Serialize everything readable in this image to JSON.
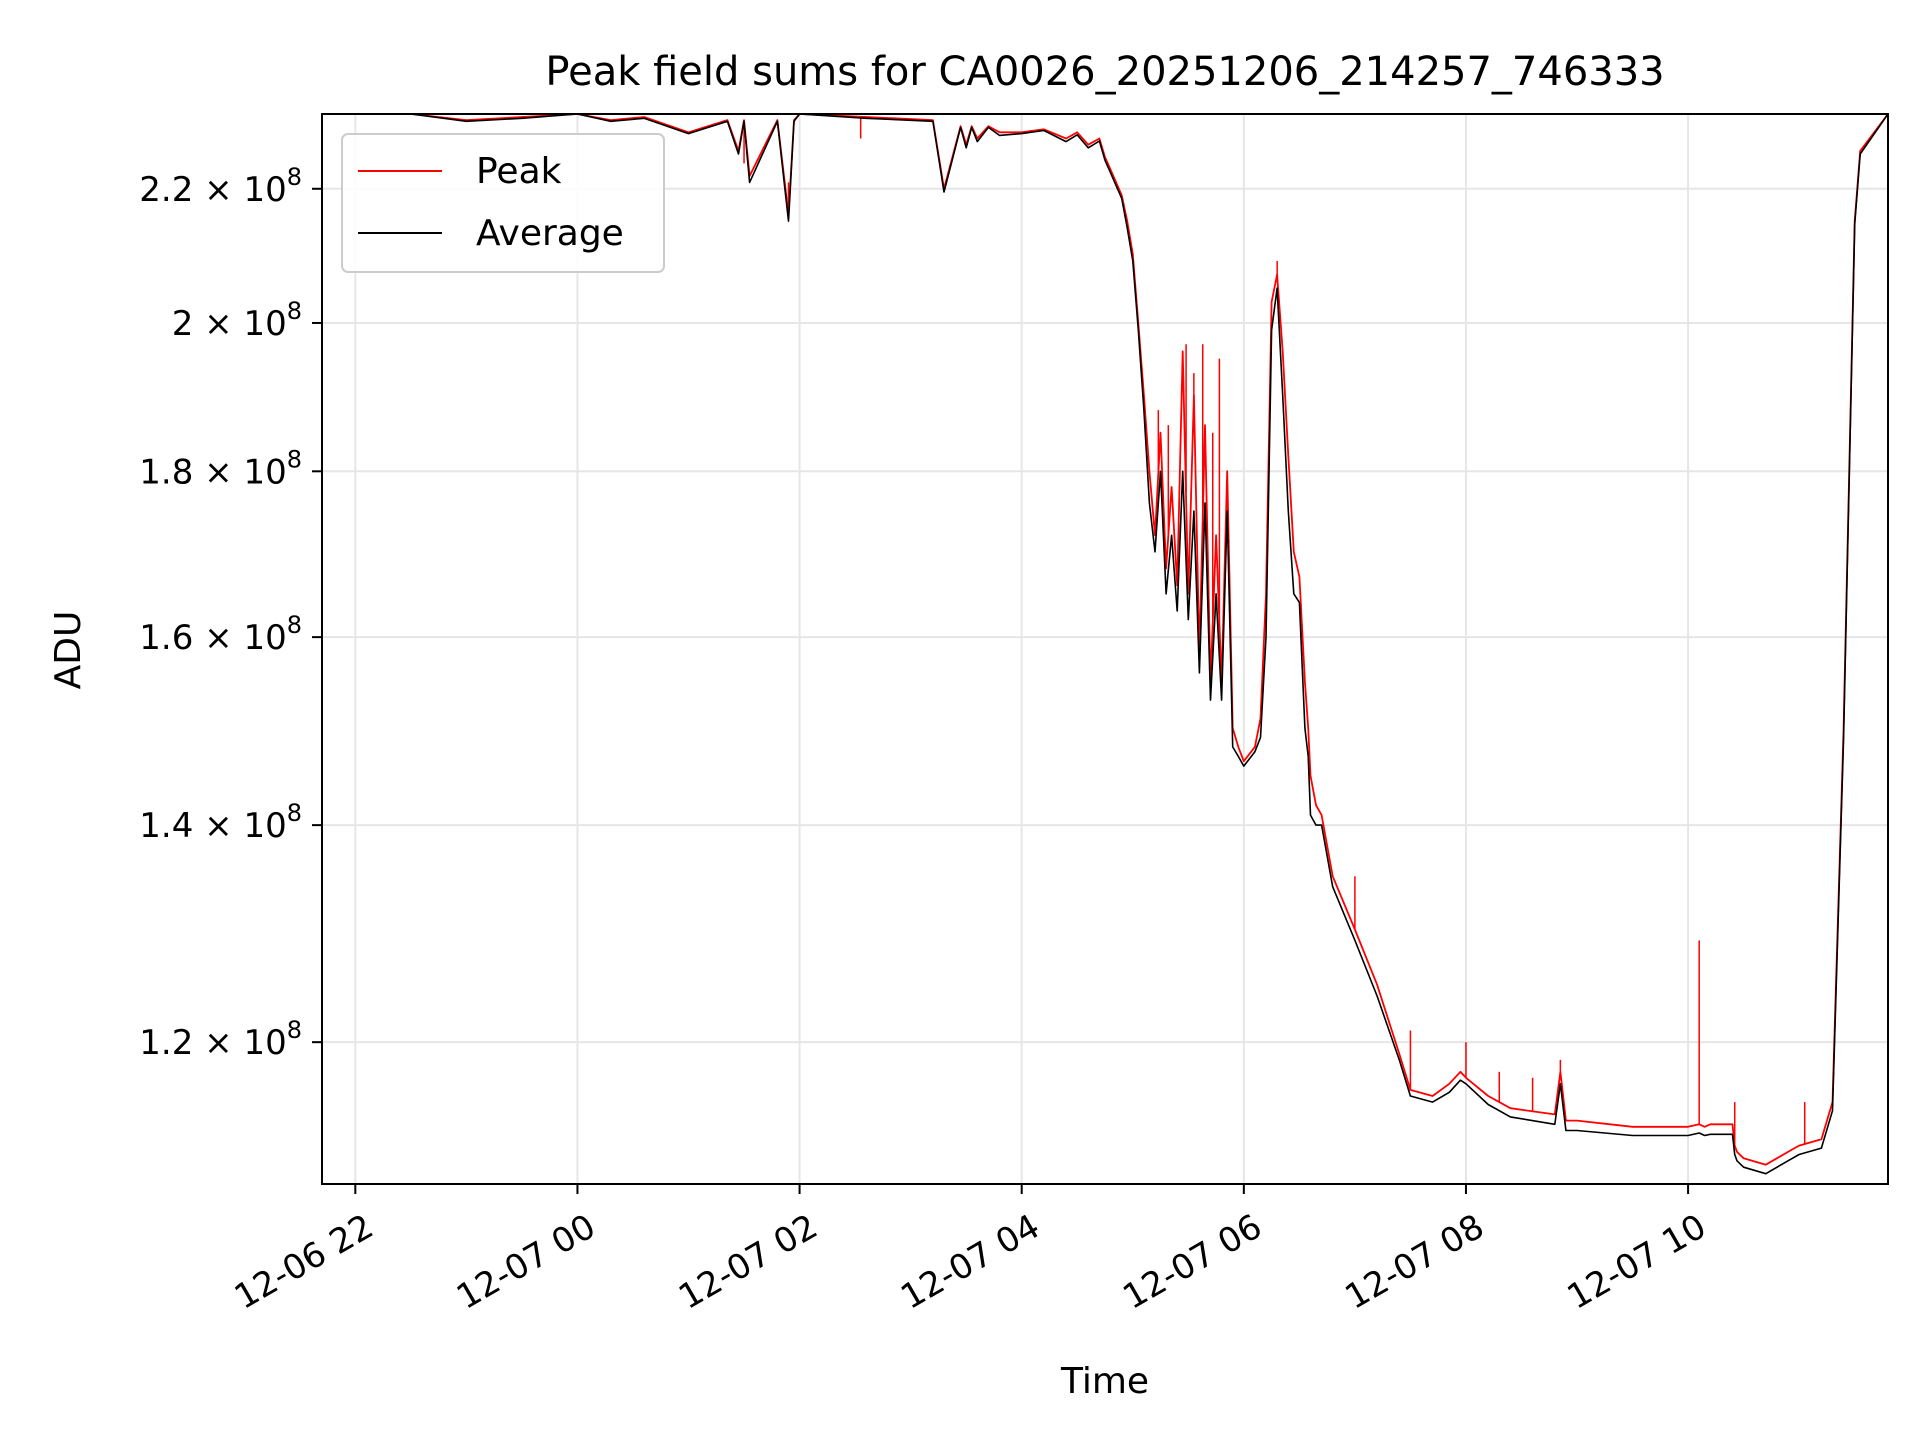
{
  "chart_data": {
    "type": "line",
    "title": "Peak field sums for CA0026_20251206_214257_746333",
    "xlabel": "Time",
    "ylabel": "ADU",
    "y_scale": "log",
    "ylim": [
      108500000,
      232000000
    ],
    "xlim": [
      -0.3,
      13.8
    ],
    "x_units": "hours since 12-06 22:00",
    "grid": true,
    "legend_position": "upper left",
    "x_ticks": [
      {
        "value": 0,
        "label": "12-06 22"
      },
      {
        "value": 2,
        "label": "12-07 00"
      },
      {
        "value": 4,
        "label": "12-07 02"
      },
      {
        "value": 6,
        "label": "12-07 04"
      },
      {
        "value": 8,
        "label": "12-07 06"
      },
      {
        "value": 10,
        "label": "12-07 08"
      },
      {
        "value": 12,
        "label": "12-07 10"
      }
    ],
    "y_ticks": [
      {
        "value": 120000000,
        "mantissa": "1.2",
        "base": "10",
        "exp": "8"
      },
      {
        "value": 140000000,
        "mantissa": "1.4",
        "base": "10",
        "exp": "8"
      },
      {
        "value": 160000000,
        "mantissa": "1.6",
        "base": "10",
        "exp": "8"
      },
      {
        "value": 180000000,
        "mantissa": "1.8",
        "base": "10",
        "exp": "8"
      },
      {
        "value": 200000000,
        "mantissa": "2",
        "base": "10",
        "exp": "8"
      },
      {
        "value": 220000000,
        "mantissa": "2.2",
        "base": "10",
        "exp": "8"
      }
    ],
    "series": [
      {
        "name": "Peak",
        "color": "#ff0000",
        "x": [
          -0.3,
          0.5,
          1.0,
          1.5,
          2.0,
          2.3,
          2.6,
          3.0,
          3.35,
          3.45,
          3.5,
          3.55,
          3.8,
          3.9,
          3.95,
          4.0,
          4.6,
          5.2,
          5.3,
          5.45,
          5.5,
          5.55,
          5.6,
          5.7,
          5.8,
          6.0,
          6.2,
          6.4,
          6.5,
          6.6,
          6.7,
          6.75,
          6.8,
          6.85,
          6.9,
          6.95,
          7.0,
          7.05,
          7.1,
          7.15,
          7.2,
          7.25,
          7.3,
          7.35,
          7.4,
          7.45,
          7.5,
          7.55,
          7.6,
          7.65,
          7.7,
          7.75,
          7.8,
          7.85,
          7.9,
          7.95,
          8.0,
          8.1,
          8.15,
          8.2,
          8.25,
          8.3,
          8.35,
          8.4,
          8.45,
          8.5,
          8.55,
          8.58,
          8.6,
          8.65,
          8.7,
          8.8,
          9.0,
          9.2,
          9.4,
          9.5,
          9.7,
          9.85,
          9.95,
          10.0,
          10.2,
          10.4,
          10.8,
          10.85,
          10.9,
          11.0,
          11.5,
          12.0,
          12.1,
          12.15,
          12.2,
          12.4,
          12.42,
          12.44,
          12.5,
          12.7,
          12.9,
          13.0,
          13.2,
          13.3,
          13.4,
          13.5,
          13.55,
          13.8
        ],
        "values": [
          232000000,
          232000000,
          231000000,
          231500000,
          232000000,
          231000000,
          231500000,
          229000000,
          231000000,
          226000000,
          231000000,
          222000000,
          231000000,
          216000000,
          231000000,
          232000000,
          231500000,
          231000000,
          220000000,
          230000000,
          227000000,
          230000000,
          228000000,
          230000000,
          229000000,
          229000000,
          229500000,
          228000000,
          229000000,
          227000000,
          228000000,
          225000000,
          223000000,
          221000000,
          219000000,
          215000000,
          210000000,
          200000000,
          190000000,
          180000000,
          172000000,
          185000000,
          168000000,
          178000000,
          166000000,
          196000000,
          165000000,
          190000000,
          158000000,
          186000000,
          155000000,
          172000000,
          155000000,
          180000000,
          150000000,
          148000000,
          146500000,
          148000000,
          151000000,
          165000000,
          203000000,
          207000000,
          196000000,
          182000000,
          170000000,
          167000000,
          155000000,
          150000000,
          145000000,
          142000000,
          141000000,
          135000000,
          130000000,
          125000000,
          119000000,
          116000000,
          115500000,
          116500000,
          117500000,
          117000000,
          115500000,
          114500000,
          114000000,
          117500000,
          113500000,
          113500000,
          113000000,
          113000000,
          113200000,
          113000000,
          113200000,
          113200000,
          111500000,
          111000000,
          110500000,
          110000000,
          111000000,
          111500000,
          112000000,
          115000000,
          150000000,
          215000000,
          226000000,
          232000000
        ],
        "spikes": [
          {
            "x": 3.5,
            "value": 224000000
          },
          {
            "x": 3.9,
            "value": 221000000
          },
          {
            "x": 4.55,
            "value": 228000000
          },
          {
            "x": 7.23,
            "value": 188000000
          },
          {
            "x": 7.32,
            "value": 186000000
          },
          {
            "x": 7.48,
            "value": 197000000
          },
          {
            "x": 7.55,
            "value": 193000000
          },
          {
            "x": 7.63,
            "value": 197000000
          },
          {
            "x": 7.72,
            "value": 185000000
          },
          {
            "x": 7.78,
            "value": 195000000
          },
          {
            "x": 8.3,
            "value": 209000000
          },
          {
            "x": 9.0,
            "value": 135000000
          },
          {
            "x": 9.5,
            "value": 121000000
          },
          {
            "x": 10.0,
            "value": 120000000
          },
          {
            "x": 10.3,
            "value": 117500000
          },
          {
            "x": 10.6,
            "value": 117000000
          },
          {
            "x": 10.85,
            "value": 118500000
          },
          {
            "x": 12.1,
            "value": 129000000
          },
          {
            "x": 12.42,
            "value": 115000000
          },
          {
            "x": 13.05,
            "value": 115000000
          }
        ]
      },
      {
        "name": "Average",
        "color": "#000000",
        "x": [
          -0.3,
          0.5,
          1.0,
          1.5,
          2.0,
          2.3,
          2.6,
          3.0,
          3.35,
          3.45,
          3.5,
          3.55,
          3.8,
          3.9,
          3.95,
          4.0,
          4.6,
          5.2,
          5.3,
          5.45,
          5.5,
          5.55,
          5.6,
          5.7,
          5.8,
          6.0,
          6.2,
          6.4,
          6.5,
          6.6,
          6.7,
          6.75,
          6.8,
          6.85,
          6.9,
          6.95,
          7.0,
          7.05,
          7.1,
          7.15,
          7.2,
          7.25,
          7.3,
          7.35,
          7.4,
          7.45,
          7.5,
          7.55,
          7.6,
          7.65,
          7.7,
          7.75,
          7.8,
          7.85,
          7.9,
          7.95,
          8.0,
          8.1,
          8.15,
          8.2,
          8.25,
          8.3,
          8.35,
          8.4,
          8.45,
          8.5,
          8.55,
          8.58,
          8.6,
          8.65,
          8.7,
          8.8,
          9.0,
          9.2,
          9.4,
          9.5,
          9.7,
          9.85,
          9.95,
          10.0,
          10.2,
          10.4,
          10.8,
          10.85,
          10.9,
          11.0,
          11.5,
          12.0,
          12.1,
          12.15,
          12.2,
          12.4,
          12.42,
          12.44,
          12.5,
          12.7,
          12.9,
          13.0,
          13.2,
          13.3,
          13.4,
          13.5,
          13.55,
          13.8
        ],
        "values": [
          232000000,
          232000000,
          230800000,
          231300000,
          232000000,
          230800000,
          231300000,
          228800000,
          230800000,
          225500000,
          230800000,
          221000000,
          230800000,
          215000000,
          230800000,
          232000000,
          231300000,
          230800000,
          219500000,
          229800000,
          226500000,
          229800000,
          227500000,
          229800000,
          228500000,
          228800000,
          229300000,
          227500000,
          228600000,
          226500000,
          227600000,
          224500000,
          222500000,
          220500000,
          218500000,
          214000000,
          209000000,
          199000000,
          188000000,
          176000000,
          170000000,
          180000000,
          165000000,
          172000000,
          163000000,
          180000000,
          162000000,
          175000000,
          156000000,
          176000000,
          153000000,
          165000000,
          153000000,
          175000000,
          148000000,
          147000000,
          146000000,
          147500000,
          149000000,
          160000000,
          199000000,
          205000000,
          190000000,
          175000000,
          165000000,
          164000000,
          150000000,
          147000000,
          141000000,
          140000000,
          140000000,
          134000000,
          129000000,
          124000000,
          118500000,
          115500000,
          115000000,
          115800000,
          116800000,
          116500000,
          114800000,
          113800000,
          113200000,
          116500000,
          112700000,
          112700000,
          112300000,
          112300000,
          112500000,
          112300000,
          112400000,
          112400000,
          110800000,
          110300000,
          109800000,
          109300000,
          110300000,
          110800000,
          111300000,
          114300000,
          149000000,
          214500000,
          225500000,
          232000000
        ]
      }
    ]
  }
}
